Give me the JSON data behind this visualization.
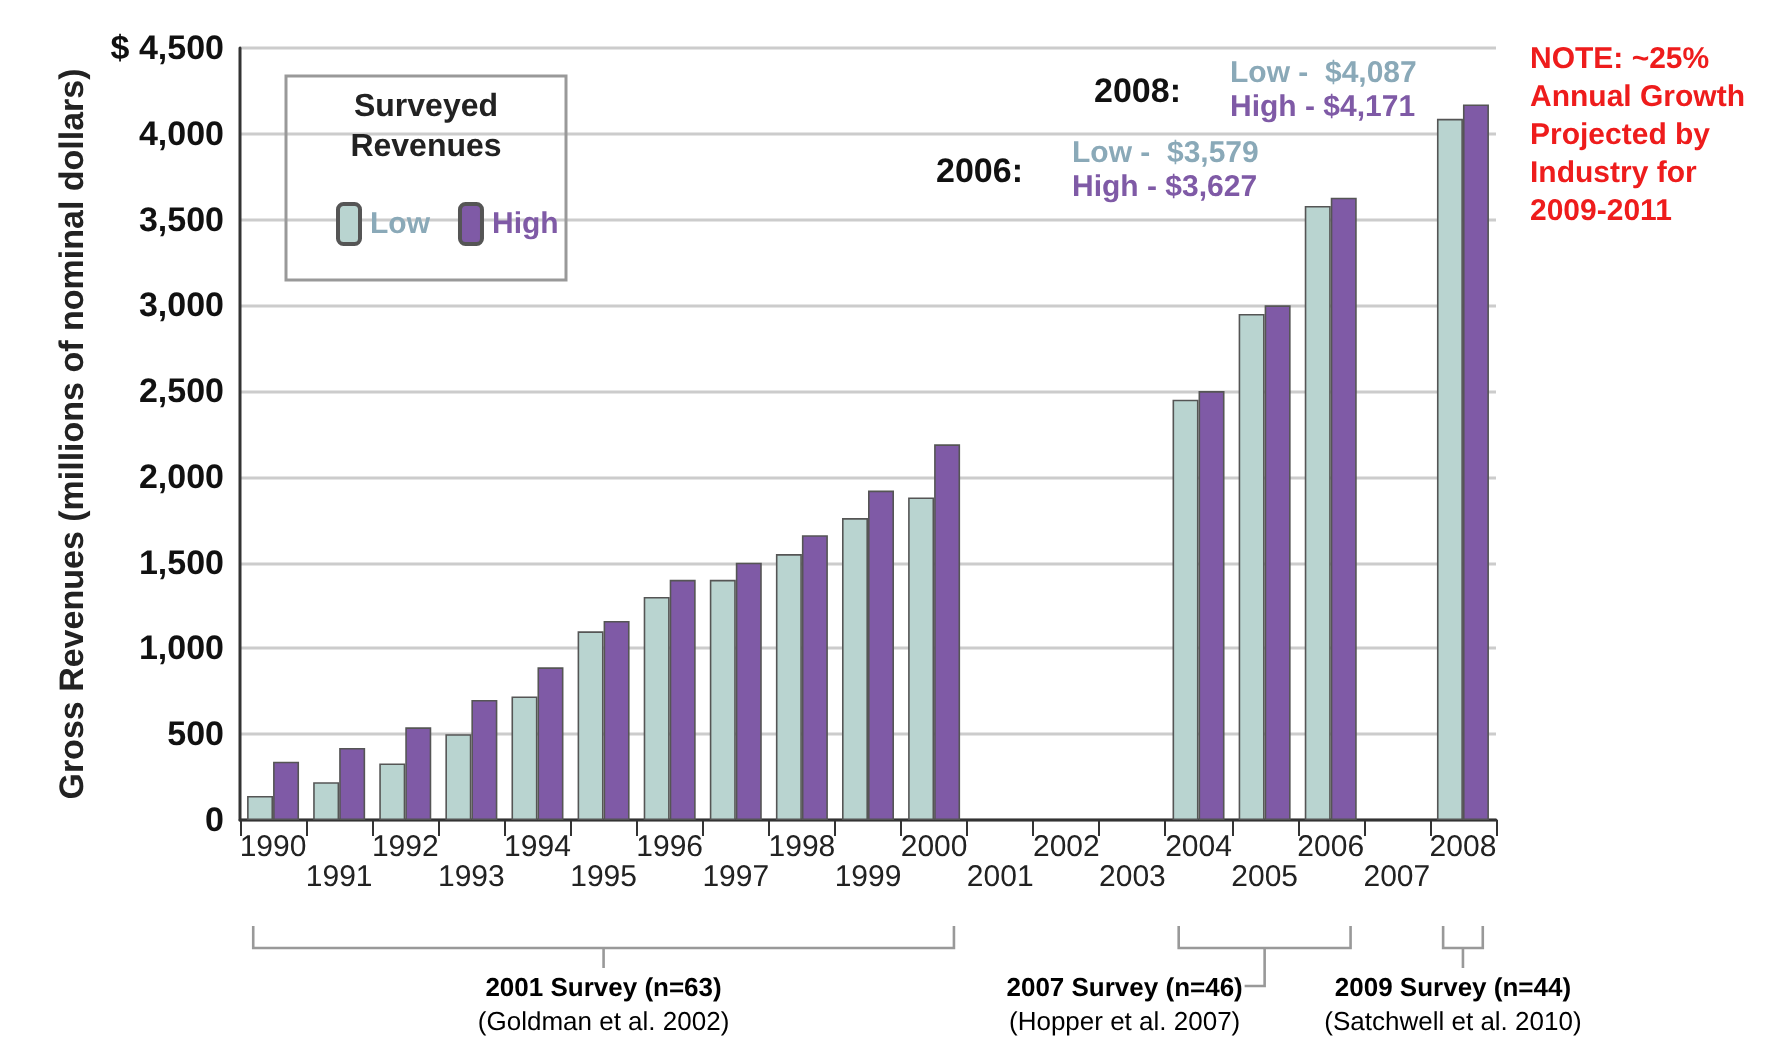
{
  "chart_data": {
    "type": "bar",
    "ylabel": "Gross Revenues (millions of nominal dollars)",
    "legend_title": "Surveyed Revenues",
    "categories": [
      "1990",
      "1991",
      "1992",
      "1993",
      "1994",
      "1995",
      "1996",
      "1997",
      "1998",
      "1999",
      "2000",
      "2001",
      "2002",
      "2003",
      "2004",
      "2005",
      "2006",
      "2007",
      "2008"
    ],
    "series": [
      {
        "name": "Low",
        "color": "#b9d4d0",
        "values": [
          140,
          220,
          330,
          500,
          720,
          1100,
          1300,
          1400,
          1550,
          1760,
          1880,
          null,
          null,
          null,
          2450,
          2950,
          3579,
          null,
          4087
        ]
      },
      {
        "name": "High",
        "color": "#7f5aa6",
        "values": [
          340,
          420,
          540,
          700,
          890,
          1160,
          1400,
          1500,
          1660,
          1920,
          2190,
          null,
          null,
          null,
          2500,
          3000,
          3627,
          null,
          4171
        ]
      }
    ],
    "ylim": [
      0,
      4500
    ],
    "yticks": [
      0,
      500,
      {
        "value": 1000,
        "label": "1,000"
      },
      {
        "value": 1500,
        "label": "1,500"
      },
      {
        "value": 2000,
        "label": "2,000"
      },
      {
        "value": 2500,
        "label": "2,500"
      },
      {
        "value": 3000,
        "label": "3,000"
      },
      {
        "value": 3500,
        "label": "3,500"
      },
      {
        "value": 4000,
        "label": "4,000"
      },
      {
        "value": 4500,
        "label": "$ 4,500"
      }
    ],
    "grid": "y",
    "legend": "top left",
    "annotations": [
      "2006:",
      "Low -  $3,579",
      "High - $3,627",
      "2008:",
      "Low -  $4,087",
      "High - $4,171",
      "2001 Survey (n=63)",
      "(Goldman et al. 2002)",
      "2007 Survey (n=46)",
      "(Hopper et al. 2007)",
      "2009 Survey (n=44)",
      "(Satchwell et al. 2010)",
      "NOTE: ~25% Annual Growth Projected by Industry for 2009-2011"
    ]
  }
}
